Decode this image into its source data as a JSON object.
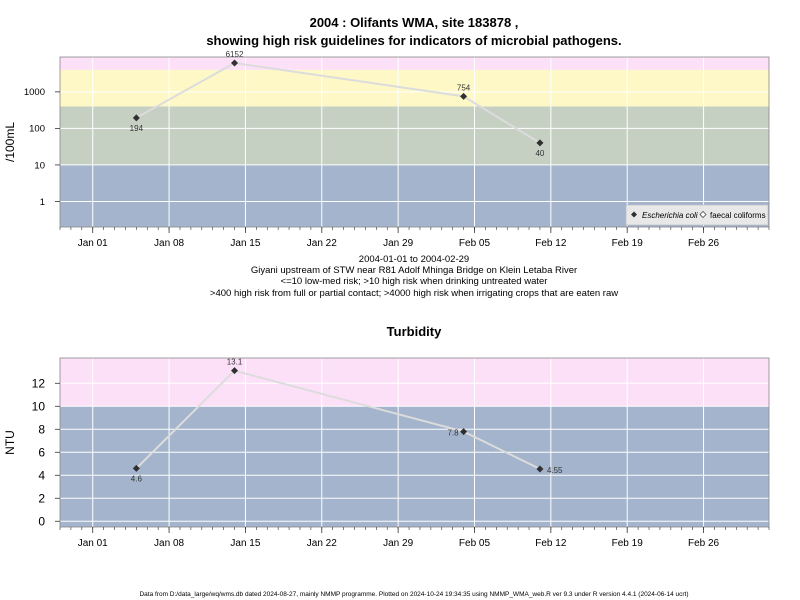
{
  "title_line1": "2004 : Olifants WMA, site 183878 ,",
  "title_line2": "showing high risk guidelines for indicators of microbial pathogens.",
  "subtitle_lines": [
    "2004-01-01 to 2004-02-29",
    "Giyani upstream of STW near R81 Adolf Mhinga Bridge on Klein Letaba River",
    "<=10 low-med risk; >10 high risk when drinking untreated water",
    ">400 high risk from full or partial contact; >4000 high risk when irrigating crops that are eaten raw"
  ],
  "footer": "Data from D:/data_large/wq/wms.db dated 2024-08-27, mainly NMMP programme. Plotted on 2024-10-24 19:34:35 using NMMP_WMA_web.R ver 9.3 under R version 4.4.1 (2024-06-14 ucrt)",
  "colors": {
    "panel_blue": "#a3b4cc",
    "panel_green": "#c5cfc2",
    "panel_yellow": "#fdf8c6",
    "panel_pink": "#fce0f7",
    "line": "#dcdcdc",
    "marker": "#303030"
  },
  "chart_data": [
    {
      "type": "line",
      "title": "",
      "ylabel": "/100mL",
      "y_scale": "log",
      "ylim": [
        0.2,
        9000
      ],
      "y_ticks": [
        1,
        10,
        100,
        1000
      ],
      "y_tick_labels": [
        "1",
        "10",
        "100",
        "1000"
      ],
      "x_range": [
        "2003-12-29",
        "2004-03-03"
      ],
      "x_ticks": [
        "2004-01-01",
        "2004-01-08",
        "2004-01-15",
        "2004-01-22",
        "2004-01-29",
        "2004-02-05",
        "2004-02-12",
        "2004-02-19",
        "2004-02-26"
      ],
      "x_tick_labels": [
        "Jan 01",
        "Jan 08",
        "Jan 15",
        "Jan 22",
        "Jan 29",
        "Feb 05",
        "Feb 12",
        "Feb 19",
        "Feb 26"
      ],
      "risk_bands": [
        10,
        400,
        4000
      ],
      "series": [
        {
          "name": "Escherichia coli",
          "x": [
            "2004-01-05",
            "2004-01-14",
            "2004-02-04",
            "2004-02-11"
          ],
          "y": [
            194,
            6152,
            754,
            40
          ],
          "labels": [
            "194",
            "6152",
            "754",
            "40"
          ]
        }
      ],
      "legend": {
        "placement": "bottom-right",
        "entries": [
          "Escherichia coli",
          "faecal coliforms"
        ]
      }
    },
    {
      "type": "line",
      "title": "Turbidity",
      "ylabel": "NTU",
      "y_scale": "linear",
      "ylim": [
        -0.5,
        14.2
      ],
      "y_ticks": [
        0,
        2,
        4,
        6,
        8,
        10,
        12
      ],
      "y_tick_labels": [
        "0",
        "2",
        "4",
        "6",
        "8",
        "10",
        "12"
      ],
      "x_range": [
        "2003-12-29",
        "2004-03-03"
      ],
      "x_ticks": [
        "2004-01-01",
        "2004-01-08",
        "2004-01-15",
        "2004-01-22",
        "2004-01-29",
        "2004-02-05",
        "2004-02-12",
        "2004-02-19",
        "2004-02-26"
      ],
      "x_tick_labels": [
        "Jan 01",
        "Jan 08",
        "Jan 15",
        "Jan 22",
        "Jan 29",
        "Feb 05",
        "Feb 12",
        "Feb 19",
        "Feb 26"
      ],
      "risk_bands": [
        10
      ],
      "series": [
        {
          "x": [
            "2004-01-05",
            "2004-01-14",
            "2004-02-04",
            "2004-02-11"
          ],
          "y": [
            4.6,
            13.1,
            7.8,
            4.55
          ],
          "labels": [
            "4.6",
            "13.1",
            "7.8",
            "4.55"
          ]
        }
      ]
    }
  ]
}
